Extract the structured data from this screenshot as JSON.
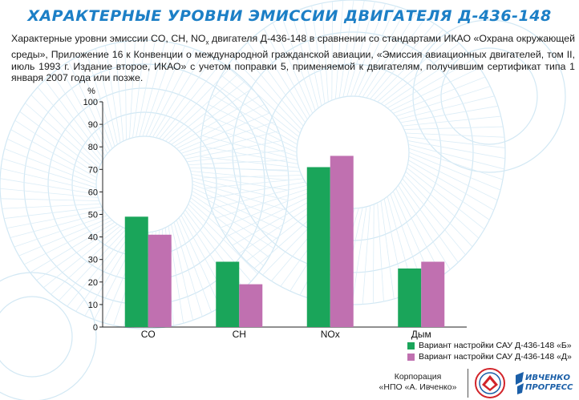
{
  "header": {
    "title": "ХАРАКТЕРНЫЕ УРОВНИ ЭМИССИИ ДВИГАТЕЛЯ Д-436-148",
    "subtitle_part1": "Характерные уровни эмиссии CO, CH, NO",
    "subtitle_sub": "x",
    "subtitle_part2": " двигателя Д-436-148 в сравнении со стандартами ИКАО «Охрана окружающей среды», Приложение 16 к Конвенции о международной гражданской авиации, «Эмиссия авиационных двигателей, том II, июль 1993 г. Издание второе, ИКАО» с учетом поправки 5, применяемой к двигателям, получившим сертификат типа 1 января 2007 года или позже."
  },
  "chart_data": {
    "type": "bar",
    "categories": [
      "CO",
      "CH",
      "NOx",
      "Дым"
    ],
    "series": [
      {
        "name": "Вариант настройки САУ Д-436-148 «Б»",
        "values": [
          49,
          29,
          71,
          26
        ],
        "color": "#1aa55a"
      },
      {
        "name": "Вариант настройки САУ Д-436-148 «Д»",
        "values": [
          41,
          19,
          76,
          29
        ],
        "color": "#c070b0"
      }
    ],
    "ylabel": "%",
    "ylim": [
      0,
      100
    ],
    "yticks": [
      0,
      10,
      20,
      30,
      40,
      50,
      60,
      70,
      80,
      90,
      100
    ],
    "grid": false,
    "legend_position": "bottom-right"
  },
  "footer": {
    "corp_line1": "Корпорация",
    "corp_line2": "«НПО «А. Ивченко»",
    "brand_line1": "ИВЧЕНКО",
    "brand_line2": "ПРОГРЕСС"
  },
  "colors": {
    "title": "#1c7fc6",
    "background_pattern": "#cfe6f3"
  }
}
